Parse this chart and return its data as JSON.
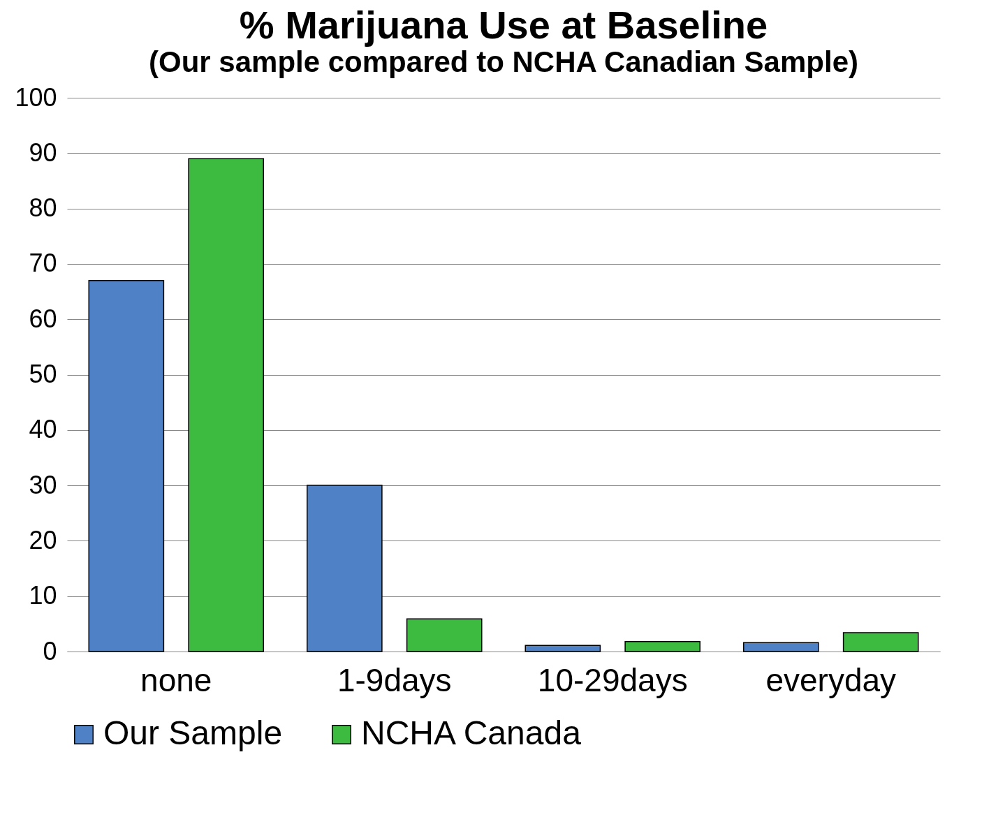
{
  "chart_data": {
    "type": "bar",
    "title": "% Marijuana Use at Baseline",
    "subtitle": "(Our sample compared to NCHA Canadian Sample)",
    "categories": [
      "none",
      "1-9days",
      "10-29days",
      "everyday"
    ],
    "series": [
      {
        "name": "Our Sample",
        "color": "#4f81c7",
        "values": [
          67,
          30,
          1.1,
          1.6
        ]
      },
      {
        "name": "NCHA Canada",
        "color": "#3dbb41",
        "values": [
          89,
          5.9,
          1.8,
          3.4
        ]
      }
    ],
    "ylim": [
      0,
      100
    ],
    "yticks": [
      0,
      10,
      20,
      30,
      40,
      50,
      60,
      70,
      80,
      90,
      100
    ],
    "grid": "y",
    "legend": "bottom"
  }
}
